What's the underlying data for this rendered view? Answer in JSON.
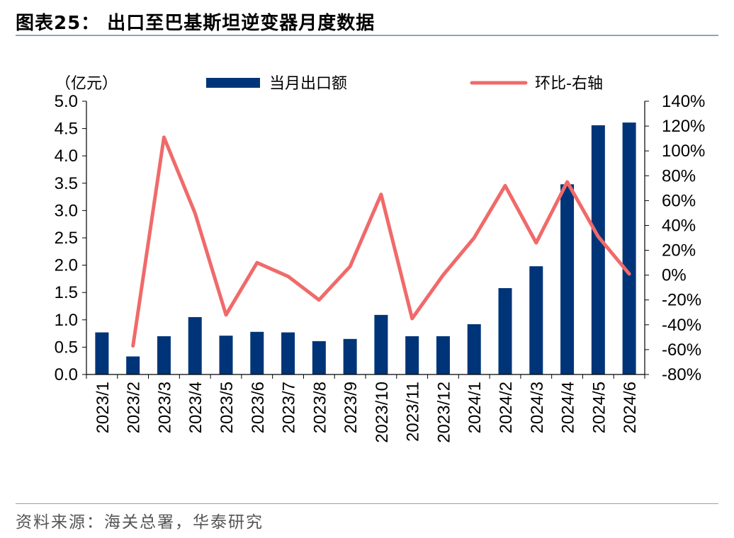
{
  "header": {
    "title": "图表25：  出口至巴基斯坦逆变器月度数据"
  },
  "footer": {
    "source": "资料来源：海关总署，华泰研究"
  },
  "chart_data": {
    "type": "bar",
    "left_unit_label": "（亿元）",
    "categories": [
      "2023/1",
      "2023/2",
      "2023/3",
      "2023/4",
      "2023/5",
      "2023/6",
      "2023/7",
      "2023/8",
      "2023/9",
      "2023/10",
      "2023/11",
      "2023/12",
      "2024/1",
      "2024/2",
      "2024/3",
      "2024/4",
      "2024/5",
      "2024/6"
    ],
    "series": [
      {
        "name": "当月出口额",
        "type": "bar",
        "axis": "left",
        "color": "#003478",
        "values": [
          0.77,
          0.33,
          0.7,
          1.05,
          0.71,
          0.78,
          0.77,
          0.61,
          0.65,
          1.09,
          0.7,
          0.7,
          0.92,
          1.58,
          1.98,
          3.48,
          4.56,
          4.61
        ]
      },
      {
        "name": "环比-右轴",
        "type": "line",
        "axis": "right",
        "color": "#f06a6a",
        "values": [
          null,
          -57,
          111,
          50,
          -32,
          10,
          -1,
          -20,
          7,
          65,
          -35,
          0,
          30,
          72,
          26,
          75,
          31,
          1
        ]
      }
    ],
    "left_axis": {
      "ylim": [
        0,
        5.0
      ],
      "ticks": [
        "0.0",
        "0.5",
        "1.0",
        "1.5",
        "2.0",
        "2.5",
        "3.0",
        "3.5",
        "4.0",
        "4.5",
        "5.0"
      ]
    },
    "right_axis": {
      "ylim": [
        -80,
        140
      ],
      "ticks": [
        "-80%",
        "-60%",
        "-40%",
        "-20%",
        "0%",
        "20%",
        "40%",
        "60%",
        "80%",
        "100%",
        "120%",
        "140%"
      ]
    },
    "legend_position": "top",
    "grid": false
  }
}
